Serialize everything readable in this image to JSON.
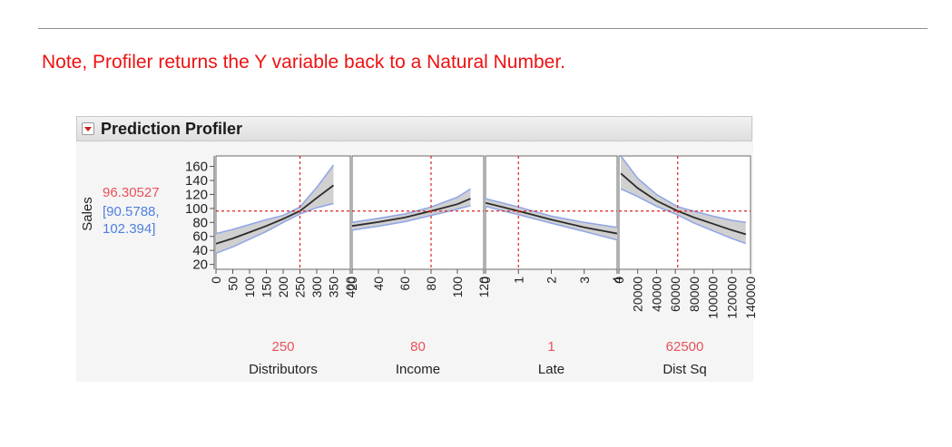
{
  "note": "Note, Profiler returns the Y variable back to a Natural Number.",
  "panel": {
    "title": "Prediction Profiler"
  },
  "colors": {
    "note": "#ee1111",
    "current": "#e8525a",
    "interval": "#4f7fe0",
    "band": "#d0d0d0",
    "band_edge": "#8ea5e8",
    "curve": "#2b2b2b",
    "crosshair": "#dd2222"
  },
  "chart_data": {
    "type": "line",
    "y": {
      "label": "Sales",
      "ticks": [
        "20",
        "40",
        "60",
        "80",
        "100",
        "120",
        "140",
        "160"
      ],
      "tick_values": [
        20,
        40,
        60,
        80,
        100,
        120,
        140,
        160
      ],
      "ylim": [
        13,
        175
      ],
      "current_value": "96.30527",
      "interval_low": "[90.5788,",
      "interval_high": "102.394]",
      "current_num": 96.3
    },
    "panels": [
      {
        "factor": "Distributors",
        "setting": "250",
        "setting_num": 250,
        "xlim": [
          0,
          400
        ],
        "ticks": [
          "0",
          "50",
          "100",
          "150",
          "200",
          "250",
          "300",
          "350",
          "400"
        ],
        "tick_values": [
          0,
          50,
          100,
          150,
          200,
          250,
          300,
          350,
          400
        ],
        "x": [
          0,
          50,
          100,
          150,
          200,
          250,
          300,
          350
        ],
        "pred": [
          49.5,
          57,
          66,
          75,
          85,
          96.3,
          115,
          133
        ],
        "lower": [
          36,
          45,
          56,
          67,
          80,
          92,
          101,
          107
        ],
        "upper": [
          64,
          70,
          77,
          84,
          90,
          102,
          130,
          162
        ]
      },
      {
        "factor": "Income",
        "setting": "80",
        "setting_num": 80,
        "xlim": [
          20,
          120
        ],
        "ticks": [
          "20",
          "40",
          "60",
          "80",
          "100",
          "120"
        ],
        "tick_values": [
          20,
          40,
          60,
          80,
          100,
          120
        ],
        "x": [
          20,
          40,
          60,
          80,
          100,
          110
        ],
        "pred": [
          75,
          80.5,
          87,
          96.3,
          106,
          114
        ],
        "lower": [
          69,
          74.5,
          81,
          90,
          99,
          104
        ],
        "upper": [
          80,
          86,
          92,
          102,
          116,
          128
        ]
      },
      {
        "factor": "Late",
        "setting": "1",
        "setting_num": 1,
        "xlim": [
          0,
          4
        ],
        "ticks": [
          "0",
          "1",
          "2",
          "3",
          "4"
        ],
        "tick_values": [
          0,
          1,
          2,
          3,
          4
        ],
        "x": [
          0,
          1,
          2,
          3,
          4
        ],
        "pred": [
          108,
          96.3,
          84,
          73,
          64
        ],
        "lower": [
          103,
          91,
          79,
          67,
          55
        ],
        "upper": [
          114,
          102,
          89,
          80,
          73
        ]
      },
      {
        "factor": "Dist Sq",
        "setting": "62500",
        "setting_num": 62500,
        "xlim": [
          0,
          140000
        ],
        "ticks": [
          "0",
          "20000",
          "40000",
          "60000",
          "80000",
          "100000",
          "120000",
          "140000"
        ],
        "tick_values": [
          0,
          20000,
          40000,
          60000,
          80000,
          100000,
          120000,
          140000
        ],
        "x": [
          2000,
          20000,
          40000,
          62500,
          80000,
          100000,
          120000,
          135000
        ],
        "pred": [
          150,
          129,
          111,
          96.3,
          87,
          78,
          69,
          63
        ],
        "lower": [
          128,
          117,
          103,
          90.6,
          79,
          68,
          57,
          50
        ],
        "upper": [
          175,
          143,
          120,
          102.4,
          96,
          89,
          83,
          80
        ]
      }
    ],
    "grid": false
  }
}
